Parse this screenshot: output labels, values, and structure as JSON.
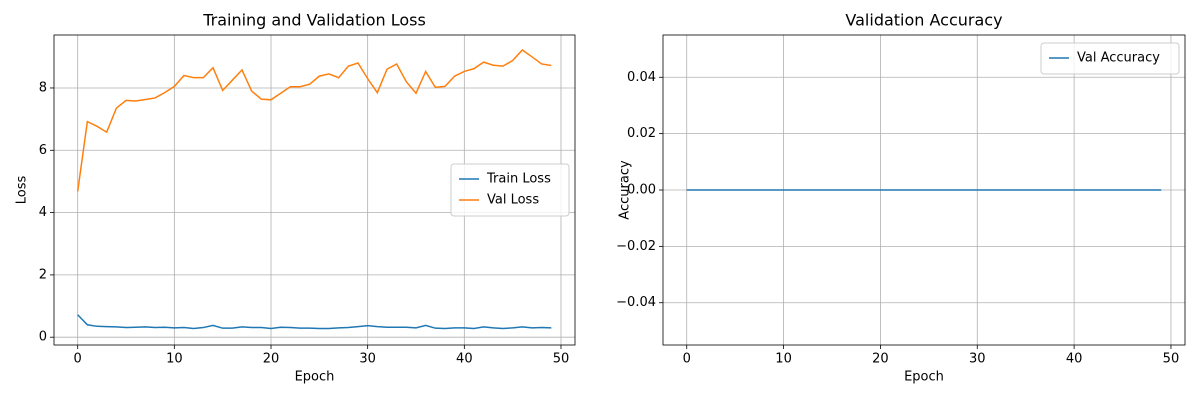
{
  "chart_data": [
    {
      "type": "line",
      "title": "Training and Validation Loss",
      "x_label": "Epoch",
      "y_label": "Loss",
      "x": [
        0,
        1,
        2,
        3,
        4,
        5,
        6,
        7,
        8,
        9,
        10,
        11,
        12,
        13,
        14,
        15,
        16,
        17,
        18,
        19,
        20,
        21,
        22,
        23,
        24,
        25,
        26,
        27,
        28,
        29,
        30,
        31,
        32,
        33,
        34,
        35,
        36,
        37,
        38,
        39,
        40,
        41,
        42,
        43,
        44,
        45,
        46,
        47,
        48,
        49
      ],
      "series": [
        {
          "name": "Train Loss",
          "color": "#1f77b4",
          "values": [
            0.72,
            0.4,
            0.35,
            0.34,
            0.33,
            0.31,
            0.32,
            0.33,
            0.31,
            0.32,
            0.3,
            0.31,
            0.28,
            0.31,
            0.38,
            0.29,
            0.29,
            0.33,
            0.31,
            0.31,
            0.28,
            0.32,
            0.31,
            0.29,
            0.29,
            0.28,
            0.28,
            0.3,
            0.31,
            0.34,
            0.37,
            0.34,
            0.32,
            0.32,
            0.32,
            0.3,
            0.38,
            0.29,
            0.28,
            0.3,
            0.3,
            0.28,
            0.33,
            0.3,
            0.28,
            0.3,
            0.33,
            0.3,
            0.31,
            0.3
          ]
        },
        {
          "name": "Val Loss",
          "color": "#ff7f0e",
          "values": [
            4.68,
            6.92,
            6.77,
            6.58,
            7.35,
            7.6,
            7.58,
            7.63,
            7.68,
            7.85,
            8.05,
            8.4,
            8.33,
            8.33,
            8.65,
            7.92,
            8.25,
            8.58,
            7.9,
            7.64,
            7.62,
            7.83,
            8.04,
            8.04,
            8.12,
            8.38,
            8.45,
            8.33,
            8.7,
            8.8,
            8.3,
            7.85,
            8.6,
            8.77,
            8.2,
            7.83,
            8.53,
            8.02,
            8.05,
            8.38,
            8.53,
            8.62,
            8.83,
            8.73,
            8.7,
            8.88,
            9.22,
            9.0,
            8.77,
            8.72
          ]
        }
      ],
      "xlim": [
        -2.45,
        51.45
      ],
      "xticks": [
        0,
        10,
        20,
        30,
        40,
        50
      ],
      "ylim": [
        -0.25,
        9.7
      ],
      "yticks": [
        0,
        2,
        4,
        6,
        8
      ],
      "grid": true,
      "legend": "center right"
    },
    {
      "type": "line",
      "title": "Validation Accuracy",
      "x_label": "Epoch",
      "y_label": "Accuracy",
      "x": [
        0,
        1,
        2,
        3,
        4,
        5,
        6,
        7,
        8,
        9,
        10,
        11,
        12,
        13,
        14,
        15,
        16,
        17,
        18,
        19,
        20,
        21,
        22,
        23,
        24,
        25,
        26,
        27,
        28,
        29,
        30,
        31,
        32,
        33,
        34,
        35,
        36,
        37,
        38,
        39,
        40,
        41,
        42,
        43,
        44,
        45,
        46,
        47,
        48,
        49
      ],
      "series": [
        {
          "name": "Val Accuracy",
          "color": "#1f77b4",
          "values": [
            0,
            0,
            0,
            0,
            0,
            0,
            0,
            0,
            0,
            0,
            0,
            0,
            0,
            0,
            0,
            0,
            0,
            0,
            0,
            0,
            0,
            0,
            0,
            0,
            0,
            0,
            0,
            0,
            0,
            0,
            0,
            0,
            0,
            0,
            0,
            0,
            0,
            0,
            0,
            0,
            0,
            0,
            0,
            0,
            0,
            0,
            0,
            0,
            0,
            0
          ]
        }
      ],
      "xlim": [
        -2.45,
        51.45
      ],
      "xticks": [
        0,
        10,
        20,
        30,
        40,
        50
      ],
      "ylim": [
        -0.055,
        0.055
      ],
      "yticks": [
        {
          "value": -0.04,
          "label": "−0.04"
        },
        {
          "value": -0.02,
          "label": "−0.02"
        },
        {
          "value": 0,
          "label": "0.00"
        },
        0.02,
        0.04
      ],
      "grid": true,
      "legend": "upper right"
    }
  ]
}
